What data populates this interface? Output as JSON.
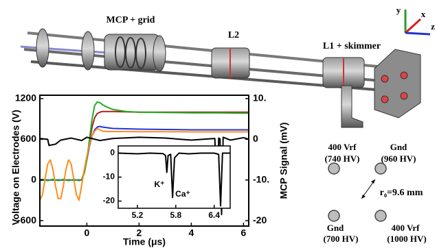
{
  "render": {
    "labels": [
      "MCP + grid",
      "L2",
      "L1 + skimmer"
    ],
    "axes": [
      "y",
      "x",
      "z"
    ]
  },
  "chart_data": [
    {
      "type": "line",
      "x_label": "Time (μs)",
      "y_label": "Voltage on Electrodes (V)",
      "y2_label": "MCP Signal (mV)",
      "x": [
        -1.8,
        -1.7,
        -1.6,
        -1.5,
        -1.4,
        -1.3,
        -1.2,
        -1.1,
        -1.0,
        -0.9,
        -0.8,
        -0.7,
        -0.6,
        -0.5,
        -0.4,
        -0.3,
        -0.2,
        -0.1,
        0,
        0.1,
        0.2,
        0.3,
        0.4,
        0.5,
        0.6,
        0.8,
        1.0,
        1.5,
        2,
        3,
        4,
        5,
        6,
        6.2
      ],
      "xlim": [
        -1.8,
        6.2
      ],
      "xticks": [
        0,
        2,
        4,
        6
      ],
      "ylim": [
        -680,
        1250
      ],
      "yticks": [
        -600,
        0,
        600,
        1200
      ],
      "y2lim": [
        -21.33,
        10.83
      ],
      "y2ticks": [
        {
          "value": 10,
          "label": "10."
        },
        0,
        {
          "value": -10,
          "label": "-10."
        },
        -20
      ],
      "series": [
        {
          "color": "#b02020",
          "values": [
            0,
            0,
            0,
            0,
            0,
            0,
            0,
            0,
            0,
            0,
            0,
            0,
            0,
            0,
            0,
            0,
            0,
            120,
            320,
            560,
            780,
            920,
            980,
            1000,
            1010,
            1010,
            1010,
            1005,
            1000,
            1000,
            1000,
            1000,
            1000,
            1000
          ]
        },
        {
          "color": "#2233dd",
          "values": [
            0,
            0,
            0,
            0,
            0,
            0,
            0,
            0,
            0,
            0,
            0,
            0,
            0,
            0,
            0,
            0,
            0,
            100,
            300,
            500,
            650,
            740,
            780,
            790,
            780,
            770,
            760,
            755,
            750,
            745,
            740,
            740,
            740,
            740
          ]
        },
        {
          "color": "#22aa22",
          "values": [
            0,
            10,
            0,
            -10,
            0,
            10,
            0,
            -10,
            0,
            10,
            0,
            -10,
            0,
            10,
            0,
            -10,
            0,
            100,
            300,
            600,
            900,
            1100,
            1150,
            1140,
            1110,
            1070,
            1040,
            1010,
            1000,
            995,
            990,
            990,
            985,
            985
          ]
        },
        {
          "color": "#ff8c1a",
          "values": [
            -299,
            -217,
            13,
            233,
            296,
            157,
            -88,
            -273,
            -274,
            -88,
            157,
            296,
            233,
            13,
            -216,
            -299,
            -80,
            150,
            350,
            520,
            650,
            720,
            760,
            740,
            720,
            715,
            715,
            715,
            712,
            712,
            710,
            710,
            710,
            710
          ]
        },
        {
          "color": "#000000",
          "axis": "y2",
          "x": [
            -1.8,
            -1.5,
            -1.45,
            -1.2,
            -1.0,
            -0.6,
            -0.2,
            0,
            0.5,
            1,
            2,
            3,
            4,
            4.9,
            5.0,
            5.05,
            5.1,
            5.16,
            5.22,
            5.5,
            6,
            6.2
          ],
          "values": [
            0.2,
            0,
            -1.5,
            -1.2,
            -0.2,
            0.3,
            -0.3,
            0.5,
            -0.3,
            0.2,
            0.5,
            0.3,
            -0.2,
            0.2,
            -13,
            0.3,
            0.1,
            -18.5,
            0.5,
            -0.2,
            0.4,
            0
          ]
        }
      ]
    },
    {
      "type": "line",
      "x": [
        4.9,
        5.2,
        5.4,
        5.6,
        5.64,
        5.66,
        5.68,
        5.72,
        5.75,
        5.78,
        5.85,
        6.0,
        6.2,
        6.4,
        6.47,
        6.5,
        6.53,
        6.65
      ],
      "xlim": [
        4.9,
        6.65
      ],
      "xticks": [
        5.2,
        5.8,
        6.4
      ],
      "ylim": [
        -23,
        3
      ],
      "yticks": [
        0,
        -10,
        -20
      ],
      "series": [
        {
          "color": "#000000",
          "values": [
            0,
            -0.3,
            0,
            -0.2,
            -1,
            -8,
            -1,
            -0.5,
            -18.5,
            -2,
            0,
            -0.3,
            0,
            0,
            -0.5,
            -22,
            0,
            0
          ]
        }
      ],
      "annotations": [
        "K⁺",
        "Ca⁺"
      ]
    }
  ],
  "diagram": {
    "electrodes": [
      {
        "role": "400 Vrf",
        "hv": "(740 HV)"
      },
      {
        "role": "Gnd",
        "hv": "(960 HV)"
      },
      {
        "role": "Gnd",
        "hv": "(700 HV)"
      },
      {
        "role": "400 Vrf",
        "hv": "(1000 HV)"
      }
    ],
    "radius": "r₀=9.6 mm"
  }
}
